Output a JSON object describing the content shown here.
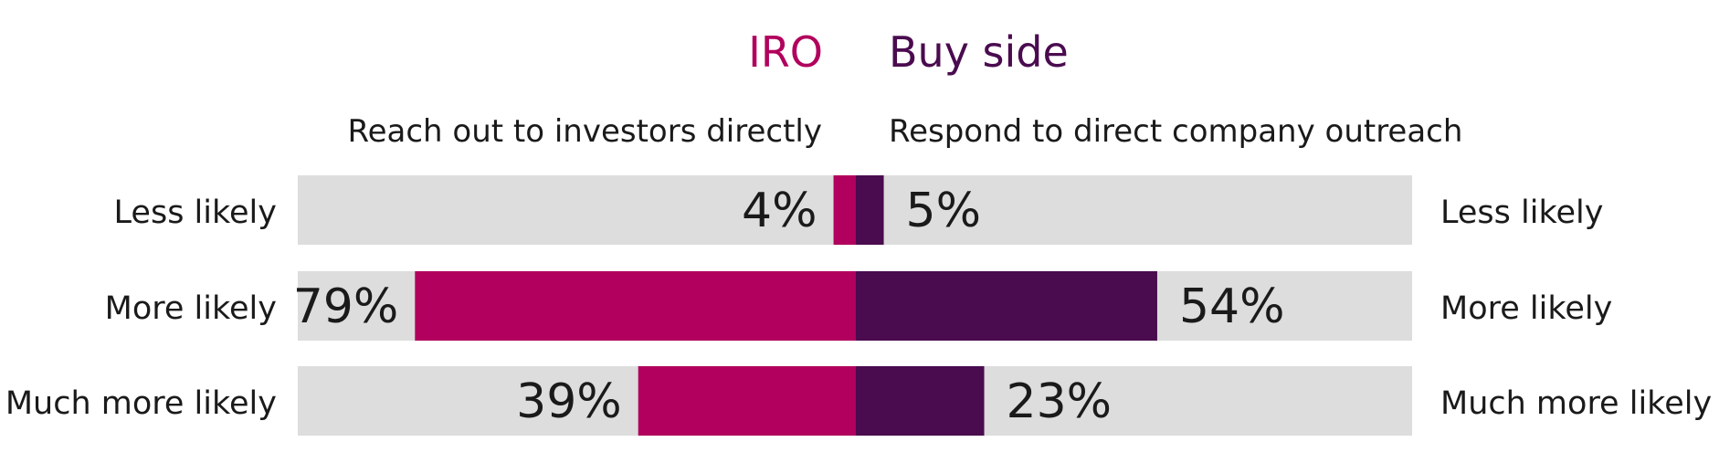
{
  "chart_data": {
    "type": "bar",
    "layout": "diverging-horizontal",
    "series": [
      {
        "name": "IRO",
        "subtitle": "Reach out to investors directly",
        "color": "#b1005d",
        "values": [
          4,
          79,
          39
        ]
      },
      {
        "name": "Buy side",
        "subtitle": "Respond to direct company outreach",
        "color": "#4a0b4f",
        "values": [
          5,
          54,
          23
        ]
      }
    ],
    "categories": [
      "Less likely",
      "More likely",
      "Much more likely"
    ],
    "value_labels": {
      "IRO": [
        "4%",
        "79%",
        "39%"
      ],
      "Buy side": [
        "5%",
        "54%",
        "23%"
      ]
    },
    "xlim": [
      0,
      100
    ],
    "track_color": "#dcdddc",
    "grid": false
  }
}
